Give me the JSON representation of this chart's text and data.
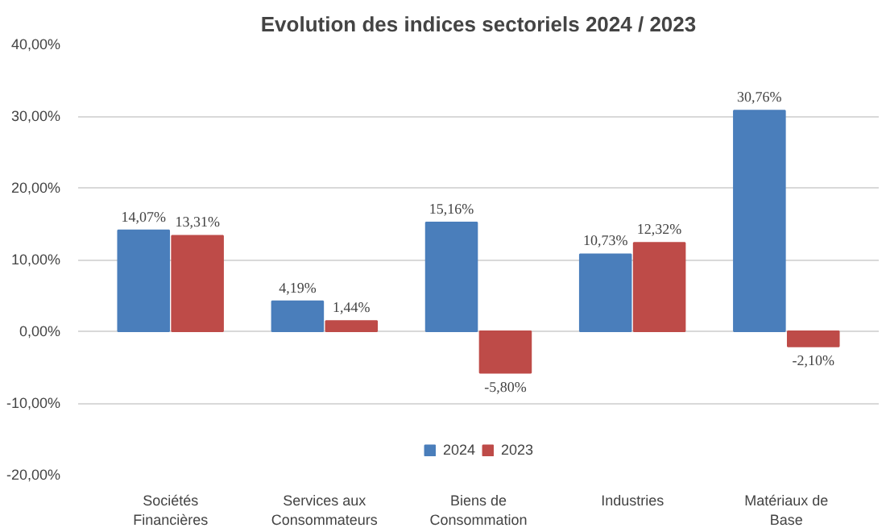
{
  "chart_data": {
    "type": "bar",
    "title": "Evolution des indices sectoriels 2024 / 2023",
    "categories": [
      "Sociétés Financières",
      "Services aux Consommateurs",
      "Biens de Consommation",
      "Industries",
      "Matériaux de Base"
    ],
    "series": [
      {
        "name": "2024",
        "color": "#4a7ebb",
        "values": [
          14.07,
          4.19,
          15.16,
          10.73,
          30.76
        ],
        "value_labels": [
          "14,07%",
          "4,19%",
          "15,16%",
          "10,73%",
          "30,76%"
        ]
      },
      {
        "name": "2023",
        "color": "#be4b48",
        "values": [
          13.31,
          1.44,
          -5.8,
          12.32,
          -2.1
        ],
        "value_labels": [
          "13,31%",
          "1,44%",
          "-5,80%",
          "12,32%",
          "-2,10%"
        ]
      }
    ],
    "ylim": [
      -20,
      40
    ],
    "yticks": [
      {
        "value": -20,
        "label": "-20,00%"
      },
      {
        "value": -10,
        "label": "-10,00%"
      },
      {
        "value": 0,
        "label": "0,00%"
      },
      {
        "value": 10,
        "label": "10,00%"
      },
      {
        "value": 20,
        "label": "20,00%"
      },
      {
        "value": 30,
        "label": "30,00%"
      },
      {
        "value": 40,
        "label": "40,00%"
      }
    ],
    "grid": "y",
    "legend": "bottom"
  }
}
